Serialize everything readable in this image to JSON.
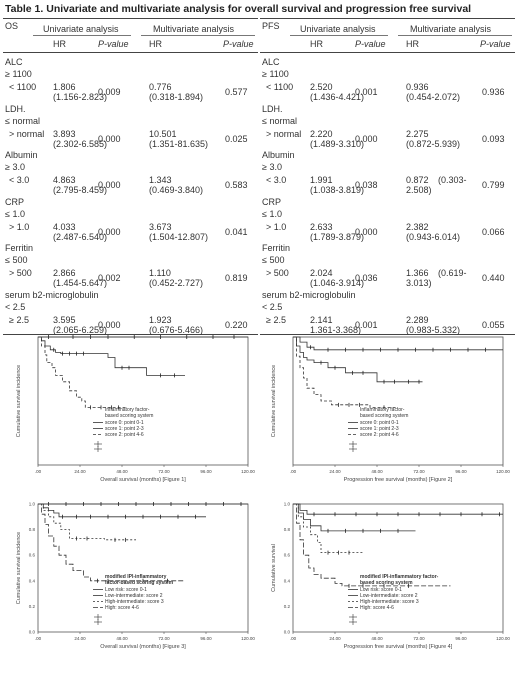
{
  "title": "Table 1. Univariate and multivariate analysis for overall survival and progression free survival",
  "tables": [
    {
      "section_label": "OS",
      "univariate_label": "Univariate analysis",
      "multivariate_label": "Multivariate analysis",
      "hr_label": "HR",
      "pvalue_label": "P-value",
      "variables": [
        {
          "name": "ALC",
          "ref": "≥ 1100",
          "level": "< 1100",
          "uni_hr": "1.806",
          "uni_ci": "(1.156-2.823)",
          "uni_p": "0.009",
          "multi_hr": "0.776",
          "multi_ci": "(0.318-1.894)",
          "multi_p": "0.577"
        },
        {
          "name": "LDH.",
          "ref": "≤ normal",
          "level": "> normal",
          "uni_hr": "3.893",
          "uni_ci": "(2.302-6.585)",
          "uni_p": "0.000",
          "multi_hr": "10.501",
          "multi_ci": "(1.351-81.635)",
          "multi_p": "0.025"
        },
        {
          "name": "Albumin",
          "ref": "≥ 3.0",
          "level": "< 3.0",
          "uni_hr": "4.863",
          "uni_ci": "(2.795-8.459)",
          "uni_p": "0.000",
          "multi_hr": "1.343",
          "multi_ci": "(0.469-3.840)",
          "multi_p": "0.583"
        },
        {
          "name": "CRP",
          "ref": "≤ 1.0",
          "level": "> 1.0",
          "uni_hr": "4.033",
          "uni_ci": "(2.487-6.540)",
          "uni_p": "0.000",
          "multi_hr": "3.673",
          "multi_ci": "(1.504-12.807)",
          "multi_p": "0.041"
        },
        {
          "name": "Ferritin",
          "ref": "≤ 500",
          "level": "> 500",
          "uni_hr": "2.866",
          "uni_ci": "(1.454-5.647)",
          "uni_p": "0.002",
          "multi_hr": "1.110",
          "multi_ci": "(0.452-2.727)",
          "multi_p": "0.819"
        },
        {
          "name": "serum b2-microglobulin",
          "ref": "< 2.5",
          "level": "≥ 2.5",
          "uni_hr": "3.595",
          "uni_ci": "(2.065-6.259)",
          "uni_p": "0.000",
          "multi_hr": "1.923",
          "multi_ci": "(0.676-5.466)",
          "multi_p": "0.220"
        }
      ]
    },
    {
      "section_label": "PFS",
      "univariate_label": "Univariate analysis",
      "multivariate_label": "Multivariate analysis",
      "hr_label": "HR",
      "pvalue_label": "P-value",
      "variables": [
        {
          "name": "ALC",
          "ref": "≥ 1100",
          "level": "< 1100",
          "uni_hr": "2.520",
          "uni_ci": "(1.436-4.421)",
          "uni_p": "0.001",
          "multi_hr": "0.936",
          "multi_ci": "(0.454-2.072)",
          "multi_p": "0.936"
        },
        {
          "name": "LDH.",
          "ref": "≤ normal",
          "level": "> normal",
          "uni_hr": "2.220",
          "uni_ci": "(1.489-3.310)",
          "uni_p": "0.000",
          "multi_hr": "2.275",
          "multi_ci": "(0.872-5.939)",
          "multi_p": "0.093"
        },
        {
          "name": "Albumin",
          "ref": "≥ 3.0",
          "level": "< 3.0",
          "uni_hr": "1.991",
          "uni_ci": "(1.038-3.819)",
          "uni_p": "0.038",
          "multi_hr": "0.872",
          "multi_ci": "(0.303-\n2.508)",
          "multi_p": "0.799"
        },
        {
          "name": "CRP",
          "ref": "≤ 1.0",
          "level": "> 1.0",
          "uni_hr": "2.633",
          "uni_ci": "(1.789-3.879)",
          "uni_p": "0.000",
          "multi_hr": "2.382",
          "multi_ci": "(0.943-6.014)",
          "multi_p": "0.066"
        },
        {
          "name": "Ferritin",
          "ref": "≤ 500",
          "level": "> 500",
          "uni_hr": "2.024",
          "uni_ci": "(1.046-3.914)",
          "uni_p": "0.036",
          "multi_hr": "1.366",
          "multi_ci": "(0.619-\n3.013)",
          "multi_p": "0.440"
        },
        {
          "name": "serum b2-microglobulin",
          "ref": "< 2.5",
          "level": "≥ 2.5",
          "uni_hr": "2.141",
          "uni_ci": "1.361-3.368)",
          "uni_p": "0.001",
          "multi_hr": "2.289",
          "multi_ci": "(0.983-5.332)",
          "multi_p": "0.055"
        }
      ]
    }
  ],
  "figures": [
    {
      "ylabel": "Cumulative survival incidence",
      "xlabel": "Overall survival (months) [Figure 1]",
      "x_ticks": [
        ".00",
        "24.00",
        "48.00",
        "72.00",
        "96.00",
        "120.00"
      ],
      "y_ticks": [],
      "legend_title": "Inflammatory factor-\nbased scoring system",
      "legend_title_bold": false,
      "legend": [
        "score 0: point 0-1",
        "score 1: point 2-3",
        "score 2: point 4-6"
      ],
      "chart_data": {
        "type": "line",
        "xlim": [
          0,
          120
        ],
        "ylim": [
          0,
          1
        ],
        "series": [
          {
            "values": [
              [
                0,
                1
              ],
              [
                2,
                1
              ],
              [
                120,
                1
              ]
            ],
            "dash": "",
            "censor": [
              6,
              20,
              30,
              40,
              55,
              70,
              85,
              100,
              112
            ]
          },
          {
            "values": [
              [
                0,
                1
              ],
              [
                2,
                0.97
              ],
              [
                4,
                0.93
              ],
              [
                7,
                0.9
              ],
              [
                10,
                0.88
              ],
              [
                13,
                0.87
              ],
              [
                30,
                0.87
              ],
              [
                40,
                0.84
              ],
              [
                44,
                0.76
              ],
              [
                60,
                0.76
              ],
              [
                62,
                0.7
              ],
              [
                84,
                0.7
              ]
            ],
            "dash": "",
            "censor": [
              9,
              14,
              18,
              22,
              26,
              48,
              52,
              70,
              78
            ]
          },
          {
            "values": [
              [
                0,
                1
              ],
              [
                2,
                0.93
              ],
              [
                4,
                0.86
              ],
              [
                5,
                0.8
              ],
              [
                8,
                0.76
              ],
              [
                10,
                0.7
              ],
              [
                14,
                0.65
              ],
              [
                18,
                0.58
              ],
              [
                22,
                0.53
              ],
              [
                25,
                0.5
              ],
              [
                27,
                0.45
              ],
              [
                50,
                0.45
              ]
            ],
            "dash": "3,2",
            "censor": [
              30,
              36,
              42,
              46
            ]
          }
        ]
      }
    },
    {
      "ylabel": "Cumulative survival incidence",
      "xlabel": "Progression free survival (months) [Figure 2]",
      "x_ticks": [
        ".00",
        "24.00",
        "48.00",
        "72.00",
        "96.00",
        "120.00"
      ],
      "y_ticks": [],
      "legend_title": "Inflammatory factor-\nbased scoring system",
      "legend_title_bold": false,
      "legend": [
        "score 0: point 0-1",
        "score 1: point 2-3",
        "score 2: point 4-6"
      ],
      "chart_data": {
        "type": "line",
        "xlim": [
          0,
          120
        ],
        "ylim": [
          0,
          1
        ],
        "series": [
          {
            "values": [
              [
                0,
                1
              ],
              [
                2,
                1
              ],
              [
                4,
                0.96
              ],
              [
                8,
                0.92
              ],
              [
                12,
                0.9
              ],
              [
                120,
                0.9
              ]
            ],
            "dash": "",
            "censor": [
              10,
              20,
              30,
              40,
              50,
              60,
              70,
              80,
              90,
              100,
              110
            ]
          },
          {
            "values": [
              [
                0,
                1
              ],
              [
                2,
                0.93
              ],
              [
                4,
                0.88
              ],
              [
                6,
                0.84
              ],
              [
                8,
                0.82
              ],
              [
                12,
                0.8
              ],
              [
                20,
                0.76
              ],
              [
                30,
                0.72
              ],
              [
                45,
                0.72
              ],
              [
                48,
                0.65
              ],
              [
                74,
                0.65
              ]
            ],
            "dash": "",
            "censor": [
              16,
              24,
              34,
              40,
              52,
              58,
              66,
              72
            ]
          },
          {
            "values": [
              [
                0,
                1
              ],
              [
                2,
                0.85
              ],
              [
                4,
                0.76
              ],
              [
                6,
                0.68
              ],
              [
                8,
                0.6
              ],
              [
                12,
                0.55
              ],
              [
                16,
                0.5
              ],
              [
                22,
                0.47
              ],
              [
                40,
                0.47
              ],
              [
                44,
                0.45
              ],
              [
                60,
                0.45
              ]
            ],
            "dash": "3,2",
            "censor": [
              26,
              32,
              38,
              52
            ]
          }
        ]
      }
    },
    {
      "ylabel": "Cumulative survival incidence",
      "xlabel": "Overall survival (months) [Figure 3]",
      "x_ticks": [
        ".00",
        "24.00",
        "48.00",
        "72.00",
        "96.00",
        "120.00"
      ],
      "y_ticks": [
        "1.0",
        "0.8",
        "0.6",
        "0.4",
        "0.2",
        "0.0"
      ],
      "legend_title": "modified IPI-inflammatory\nfactor-based scoring system",
      "legend_title_bold": true,
      "legend": [
        "Low risk: score 0-1",
        "Low-intermediate: score 2",
        "High-intermediate: score 3",
        "High: score 4-6"
      ],
      "chart_data": {
        "type": "line",
        "xlim": [
          0,
          120
        ],
        "ylim": [
          0,
          1
        ],
        "series": [
          {
            "values": [
              [
                0,
                1
              ],
              [
                120,
                1
              ]
            ],
            "dash": "",
            "censor": [
              6,
              16,
              26,
              36,
              46,
              56,
              66,
              76,
              86,
              96,
              106,
              116
            ]
          },
          {
            "values": [
              [
                0,
                1
              ],
              [
                3,
                0.97
              ],
              [
                6,
                0.95
              ],
              [
                9,
                0.93
              ],
              [
                12,
                0.9
              ],
              [
                96,
                0.9
              ]
            ],
            "dash": "",
            "censor": [
              14,
              22,
              30,
              40,
              50,
              60,
              70,
              80,
              90
            ]
          },
          {
            "values": [
              [
                0,
                1
              ],
              [
                3,
                0.95
              ],
              [
                6,
                0.9
              ],
              [
                9,
                0.85
              ],
              [
                13,
                0.8
              ],
              [
                18,
                0.73
              ],
              [
                36,
                0.73
              ],
              [
                38,
                0.72
              ],
              [
                56,
                0.72
              ]
            ],
            "dash": "2,2",
            "censor": [
              22,
              28,
              44,
              50
            ]
          },
          {
            "values": [
              [
                0,
                1
              ],
              [
                2,
                0.92
              ],
              [
                4,
                0.84
              ],
              [
                6,
                0.75
              ],
              [
                9,
                0.67
              ],
              [
                12,
                0.6
              ],
              [
                16,
                0.53
              ],
              [
                20,
                0.48
              ],
              [
                26,
                0.43
              ],
              [
                30,
                0.4
              ],
              [
                84,
                0.4
              ]
            ],
            "dash": "5,2",
            "censor": [
              34,
              40,
              60,
              74
            ]
          }
        ]
      }
    },
    {
      "ylabel": "Cumulative survival",
      "xlabel": "Progression free survival (months) [Figure 4]",
      "x_ticks": [
        ".00",
        "24.00",
        "48.00",
        "72.00",
        "96.00",
        "120.00"
      ],
      "y_ticks": [
        "1.0",
        "0.8",
        "0.6",
        "0.4",
        "0.2",
        "0.0"
      ],
      "legend_title": "modified IPI-inflammatory factor-\nbased scoring system",
      "legend_title_bold": true,
      "legend": [
        "Low risk: score 0-1",
        "Low-intermediate: score 2",
        "High-intermediate: score 3",
        "High: score 4-6"
      ],
      "chart_data": {
        "type": "line",
        "xlim": [
          0,
          120
        ],
        "ylim": [
          0,
          1
        ],
        "series": [
          {
            "values": [
              [
                0,
                1
              ],
              [
                4,
                0.95
              ],
              [
                8,
                0.92
              ],
              [
                120,
                0.92
              ]
            ],
            "dash": "",
            "censor": [
              12,
              24,
              36,
              48,
              60,
              72,
              84,
              96,
              108,
              118
            ]
          },
          {
            "values": [
              [
                0,
                1
              ],
              [
                3,
                0.93
              ],
              [
                6,
                0.88
              ],
              [
                10,
                0.83
              ],
              [
                16,
                0.79
              ],
              [
                70,
                0.79
              ]
            ],
            "dash": "",
            "censor": [
              20,
              30,
              40,
              50,
              60
            ]
          },
          {
            "values": [
              [
                0,
                1
              ],
              [
                3,
                0.9
              ],
              [
                6,
                0.82
              ],
              [
                10,
                0.76
              ],
              [
                14,
                0.7
              ],
              [
                16,
                0.62
              ],
              [
                40,
                0.62
              ]
            ],
            "dash": "2,2",
            "censor": [
              20,
              26,
              32
            ]
          },
          {
            "values": [
              [
                0,
                1
              ],
              [
                2,
                0.85
              ],
              [
                4,
                0.72
              ],
              [
                6,
                0.6
              ],
              [
                9,
                0.5
              ],
              [
                12,
                0.45
              ],
              [
                16,
                0.42
              ],
              [
                24,
                0.38
              ],
              [
                28,
                0.36
              ],
              [
                90,
                0.36
              ]
            ],
            "dash": "5,2",
            "censor": [
              32,
              40,
              52,
              66
            ]
          }
        ]
      }
    }
  ]
}
